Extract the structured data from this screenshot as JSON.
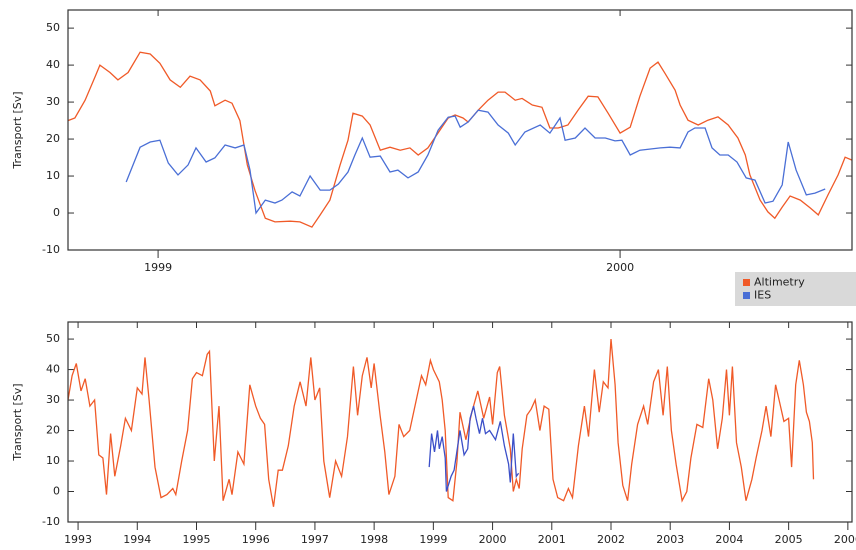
{
  "chart_data": [
    {
      "type": "line",
      "y_label": "Transport [Sv]",
      "xlim": [
        1998.805,
        2000.502
      ],
      "xticks": [
        1999,
        2000
      ],
      "ylim": [
        -10,
        54.9
      ],
      "yticks": [
        -10,
        0,
        10,
        20,
        30,
        40,
        50
      ],
      "grid": false,
      "legend": "outside-bottom-right",
      "series": [
        {
          "name": "Altimetry",
          "color": "#f05a28",
          "x": [
            1998.805,
            1998.82,
            1998.842,
            1998.864,
            1998.874,
            1998.896,
            1998.913,
            1998.935,
            1998.961,
            1998.983,
            1999.004,
            1999.026,
            1999.048,
            1999.069,
            1999.091,
            1999.113,
            1999.123,
            1999.145,
            1999.16,
            1999.177,
            1999.193,
            1999.21,
            1999.232,
            1999.253,
            1999.286,
            1999.307,
            1999.333,
            1999.351,
            1999.372,
            1999.394,
            1999.411,
            1999.422,
            1999.442,
            1999.459,
            1999.481,
            1999.502,
            1999.524,
            1999.545,
            1999.563,
            1999.584,
            1999.61,
            1999.628,
            1999.643,
            1999.66,
            1999.671,
            1999.693,
            1999.714,
            1999.736,
            1999.751,
            1999.773,
            1999.788,
            1999.81,
            1999.831,
            1999.848,
            1999.866,
            1999.887,
            1999.909,
            1999.931,
            1999.952,
            1999.974,
            2000.0,
            2000.022,
            2000.043,
            2000.065,
            2000.082,
            2000.097,
            2000.119,
            2000.13,
            2000.147,
            2000.169,
            2000.19,
            2000.212,
            2000.234,
            2000.255,
            2000.271,
            2000.281,
            2000.303,
            2000.32,
            2000.335,
            2000.351,
            2000.368,
            2000.39,
            2000.411,
            2000.429,
            2000.45,
            2000.472,
            2000.487,
            2000.502
          ],
          "values": [
            25,
            25.7,
            30.5,
            37,
            40,
            38,
            36,
            38,
            43.5,
            43,
            40.5,
            36,
            34,
            37,
            36,
            33,
            29,
            30.5,
            29.7,
            25,
            13,
            6,
            -1.4,
            -2.4,
            -2.2,
            -2.4,
            -3.8,
            -0.5,
            3.5,
            13,
            19.7,
            27,
            26.2,
            23.8,
            17,
            17.8,
            17,
            17.6,
            15.7,
            17.6,
            22.4,
            25.7,
            26.5,
            25.7,
            24.6,
            27.8,
            30.5,
            32.7,
            32.7,
            30.5,
            31,
            29.2,
            28.6,
            23,
            23,
            23.8,
            27.8,
            31.6,
            31.4,
            27,
            21.6,
            23.2,
            31.6,
            39.2,
            40.8,
            37.8,
            33.2,
            29.2,
            25.1,
            23.8,
            25.1,
            26,
            23.8,
            20.3,
            15.7,
            10.3,
            3.5,
            0.3,
            -1.4,
            1.6,
            4.6,
            3.5,
            1.4,
            -0.5,
            4.9,
            10.3,
            15.1,
            14.3
          ]
        },
        {
          "name": "IES",
          "color": "#4a6fd6",
          "x": [
            1998.931,
            1998.961,
            1998.983,
            1999.004,
            1999.022,
            1999.043,
            1999.065,
            1999.082,
            1999.104,
            1999.123,
            1999.145,
            1999.167,
            1999.186,
            1999.199,
            1999.212,
            1999.232,
            1999.253,
            1999.268,
            1999.29,
            1999.307,
            1999.329,
            1999.351,
            1999.372,
            1999.39,
            1999.411,
            1999.426,
            1999.442,
            1999.459,
            1999.481,
            1999.502,
            1999.519,
            1999.541,
            1999.563,
            1999.584,
            1999.606,
            1999.628,
            1999.643,
            1999.654,
            1999.671,
            1999.693,
            1999.714,
            1999.736,
            1999.758,
            1999.773,
            1999.794,
            1999.827,
            1999.848,
            1999.87,
            1999.881,
            1999.903,
            1999.924,
            1999.946,
            1999.968,
            1999.989,
            2000.004,
            2000.022,
            2000.043,
            2000.087,
            2000.108,
            2000.13,
            2000.147,
            2000.162,
            2000.184,
            2000.199,
            2000.216,
            2000.234,
            2000.253,
            2000.273,
            2000.292,
            2000.314,
            2000.331,
            2000.351,
            2000.364,
            2000.381,
            2000.403,
            2000.422,
            2000.444
          ],
          "values": [
            8.4,
            17.8,
            19.2,
            19.7,
            13.5,
            10.3,
            13,
            17.6,
            13.8,
            14.9,
            18.4,
            17.6,
            18.4,
            11.6,
            0,
            3.5,
            2.7,
            3.5,
            5.7,
            4.6,
            10,
            6.2,
            6.2,
            7.8,
            11.1,
            15.7,
            20.3,
            15.1,
            15.4,
            11.1,
            11.6,
            9.5,
            11.1,
            15.7,
            22.4,
            25.9,
            26.2,
            23.2,
            24.6,
            27.8,
            27.3,
            23.8,
            21.6,
            18.4,
            21.9,
            23.8,
            21.6,
            25.7,
            19.7,
            20.3,
            23,
            20.3,
            20.3,
            19.5,
            19.7,
            15.7,
            17,
            17.6,
            17.8,
            17.6,
            21.9,
            23,
            23,
            17.6,
            15.7,
            15.7,
            13.8,
            9.5,
            8.9,
            2.7,
            3.2,
            7.6,
            19.2,
            11.6,
            4.9,
            5.4,
            6.5
          ]
        }
      ]
    },
    {
      "type": "line",
      "y_label": "Transport [Sv]",
      "xlim": [
        1992.83,
        2006.07
      ],
      "xticks": [
        1993,
        1994,
        1995,
        1996,
        1997,
        1998,
        1999,
        2000,
        2001,
        2002,
        2003,
        2004,
        2005,
        2006
      ],
      "ylim": [
        -10,
        55.6
      ],
      "yticks": [
        -10,
        0,
        10,
        20,
        30,
        40,
        50
      ],
      "grid": false,
      "series": [
        {
          "color": "#f05a28",
          "x": [
            1992.83,
            1992.9,
            1992.97,
            1993.05,
            1993.12,
            1993.2,
            1993.28,
            1993.35,
            1993.42,
            1993.48,
            1993.55,
            1993.62,
            1993.72,
            1993.8,
            1993.9,
            1994.0,
            1994.08,
            1994.13,
            1994.2,
            1994.3,
            1994.4,
            1994.5,
            1994.6,
            1994.65,
            1994.75,
            1994.85,
            1994.93,
            1995.0,
            1995.1,
            1995.18,
            1995.22,
            1995.3,
            1995.38,
            1995.45,
            1995.55,
            1995.6,
            1995.7,
            1995.8,
            1995.9,
            1996.0,
            1996.08,
            1996.15,
            1996.22,
            1996.3,
            1996.38,
            1996.45,
            1996.55,
            1996.65,
            1996.75,
            1996.85,
            1996.93,
            1997.0,
            1997.08,
            1997.15,
            1997.25,
            1997.35,
            1997.45,
            1997.55,
            1997.65,
            1997.72,
            1997.8,
            1997.88,
            1997.95,
            1998.0,
            1998.1,
            1998.18,
            1998.25,
            1998.35,
            1998.42,
            1998.5,
            1998.6,
            1998.7,
            1998.8,
            1998.87,
            1998.95,
            1999.0,
            1999.1,
            1999.15,
            1999.2,
            1999.25,
            1999.33,
            1999.4,
            1999.45,
            1999.55,
            1999.65,
            1999.75,
            1999.85,
            1999.95,
            2000.0,
            2000.08,
            2000.12,
            2000.2,
            2000.3,
            2000.35,
            2000.4,
            2000.45,
            2000.5,
            2000.58,
            2000.65,
            2000.72,
            2000.8,
            2000.87,
            2000.95,
            2001.02,
            2001.1,
            2001.2,
            2001.28,
            2001.35,
            2001.45,
            2001.55,
            2001.62,
            2001.72,
            2001.8,
            2001.87,
            2001.95,
            2002.0,
            2002.07,
            2002.12,
            2002.2,
            2002.28,
            2002.35,
            2002.45,
            2002.55,
            2002.62,
            2002.72,
            2002.8,
            2002.88,
            2002.95,
            2003.02,
            2003.1,
            2003.2,
            2003.28,
            2003.35,
            2003.45,
            2003.55,
            2003.65,
            2003.72,
            2003.8,
            2003.88,
            2003.95,
            2004.0,
            2004.05,
            2004.12,
            2004.2,
            2004.28,
            2004.38,
            2004.45,
            2004.55,
            2004.62,
            2004.7,
            2004.78,
            2004.85,
            2004.92,
            2005.0,
            2005.05,
            2005.12,
            2005.18,
            2005.25,
            2005.3,
            2005.35,
            2005.4,
            2005.42
          ],
          "values": [
            30,
            38,
            42,
            33,
            37,
            28,
            30,
            12,
            11,
            -1,
            19,
            5,
            15,
            24,
            20,
            34,
            32,
            44,
            30,
            8,
            -2,
            -1,
            1,
            -1,
            10,
            20,
            37,
            39,
            38,
            45,
            46,
            10,
            28,
            -3,
            4,
            -1,
            13,
            9,
            35,
            28,
            24,
            22,
            4,
            -5,
            7,
            7,
            15,
            28,
            36,
            28,
            44,
            30,
            34,
            10,
            -2,
            10,
            5,
            18,
            41,
            25,
            38,
            44,
            34,
            42,
            25,
            13,
            -1,
            5,
            22,
            18,
            20,
            29,
            38,
            35,
            43,
            40,
            36,
            30,
            20,
            -2,
            -3,
            10,
            26,
            17,
            26,
            33,
            24,
            31,
            22,
            39,
            41,
            25,
            14,
            0,
            4,
            1,
            14,
            25,
            27,
            30,
            20,
            28,
            27,
            4,
            -2,
            -3,
            1,
            -2,
            15,
            28,
            18,
            40,
            26,
            36,
            34,
            50,
            35,
            16,
            2,
            -3,
            9,
            22,
            28,
            22,
            36,
            40,
            25,
            41,
            20,
            9,
            -3,
            0,
            11,
            22,
            21,
            37,
            30,
            14,
            24,
            40,
            25,
            41,
            16,
            8,
            -3,
            4,
            11,
            20,
            28,
            18,
            35,
            29,
            23,
            24,
            8,
            35,
            43,
            35,
            26,
            23,
            16,
            4
          ]
        },
        {
          "color": "#3b4fc8",
          "x": [
            1998.93,
            1998.97,
            1999.02,
            1999.07,
            1999.1,
            1999.15,
            1999.2,
            1999.22,
            1999.3,
            1999.35,
            1999.42,
            1999.45,
            1999.52,
            1999.58,
            1999.62,
            1999.68,
            1999.72,
            1999.78,
            1999.83,
            1999.88,
            1999.95,
            2000.05,
            2000.13,
            2000.2,
            2000.27,
            2000.3,
            2000.35,
            2000.4,
            2000.44
          ],
          "values": [
            8,
            19,
            13,
            20,
            14,
            18,
            11,
            0,
            5,
            7,
            16,
            20,
            12,
            14,
            24,
            28,
            24,
            19,
            24,
            19,
            20,
            17,
            23,
            15,
            9,
            3,
            19,
            5,
            6
          ]
        }
      ]
    }
  ]
}
